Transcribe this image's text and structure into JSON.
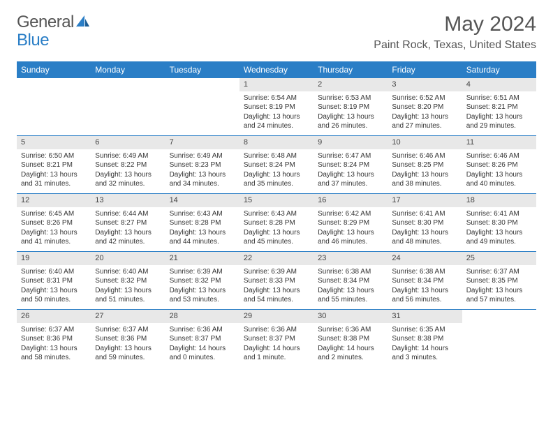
{
  "logo": {
    "text_a": "General",
    "text_b": "Blue"
  },
  "title": "May 2024",
  "location": "Paint Rock, Texas, United States",
  "colors": {
    "header_bg": "#2a7ec6",
    "header_text": "#ffffff",
    "daynum_bg": "#e8e8e8",
    "border": "#2a7ec6",
    "body_text": "#333333"
  },
  "weekdays": [
    "Sunday",
    "Monday",
    "Tuesday",
    "Wednesday",
    "Thursday",
    "Friday",
    "Saturday"
  ],
  "weeks": [
    [
      null,
      null,
      null,
      {
        "n": "1",
        "sr": "6:54 AM",
        "ss": "8:19 PM",
        "dl": "13 hours and 24 minutes."
      },
      {
        "n": "2",
        "sr": "6:53 AM",
        "ss": "8:19 PM",
        "dl": "13 hours and 26 minutes."
      },
      {
        "n": "3",
        "sr": "6:52 AM",
        "ss": "8:20 PM",
        "dl": "13 hours and 27 minutes."
      },
      {
        "n": "4",
        "sr": "6:51 AM",
        "ss": "8:21 PM",
        "dl": "13 hours and 29 minutes."
      }
    ],
    [
      {
        "n": "5",
        "sr": "6:50 AM",
        "ss": "8:21 PM",
        "dl": "13 hours and 31 minutes."
      },
      {
        "n": "6",
        "sr": "6:49 AM",
        "ss": "8:22 PM",
        "dl": "13 hours and 32 minutes."
      },
      {
        "n": "7",
        "sr": "6:49 AM",
        "ss": "8:23 PM",
        "dl": "13 hours and 34 minutes."
      },
      {
        "n": "8",
        "sr": "6:48 AM",
        "ss": "8:24 PM",
        "dl": "13 hours and 35 minutes."
      },
      {
        "n": "9",
        "sr": "6:47 AM",
        "ss": "8:24 PM",
        "dl": "13 hours and 37 minutes."
      },
      {
        "n": "10",
        "sr": "6:46 AM",
        "ss": "8:25 PM",
        "dl": "13 hours and 38 minutes."
      },
      {
        "n": "11",
        "sr": "6:46 AM",
        "ss": "8:26 PM",
        "dl": "13 hours and 40 minutes."
      }
    ],
    [
      {
        "n": "12",
        "sr": "6:45 AM",
        "ss": "8:26 PM",
        "dl": "13 hours and 41 minutes."
      },
      {
        "n": "13",
        "sr": "6:44 AM",
        "ss": "8:27 PM",
        "dl": "13 hours and 42 minutes."
      },
      {
        "n": "14",
        "sr": "6:43 AM",
        "ss": "8:28 PM",
        "dl": "13 hours and 44 minutes."
      },
      {
        "n": "15",
        "sr": "6:43 AM",
        "ss": "8:28 PM",
        "dl": "13 hours and 45 minutes."
      },
      {
        "n": "16",
        "sr": "6:42 AM",
        "ss": "8:29 PM",
        "dl": "13 hours and 46 minutes."
      },
      {
        "n": "17",
        "sr": "6:41 AM",
        "ss": "8:30 PM",
        "dl": "13 hours and 48 minutes."
      },
      {
        "n": "18",
        "sr": "6:41 AM",
        "ss": "8:30 PM",
        "dl": "13 hours and 49 minutes."
      }
    ],
    [
      {
        "n": "19",
        "sr": "6:40 AM",
        "ss": "8:31 PM",
        "dl": "13 hours and 50 minutes."
      },
      {
        "n": "20",
        "sr": "6:40 AM",
        "ss": "8:32 PM",
        "dl": "13 hours and 51 minutes."
      },
      {
        "n": "21",
        "sr": "6:39 AM",
        "ss": "8:32 PM",
        "dl": "13 hours and 53 minutes."
      },
      {
        "n": "22",
        "sr": "6:39 AM",
        "ss": "8:33 PM",
        "dl": "13 hours and 54 minutes."
      },
      {
        "n": "23",
        "sr": "6:38 AM",
        "ss": "8:34 PM",
        "dl": "13 hours and 55 minutes."
      },
      {
        "n": "24",
        "sr": "6:38 AM",
        "ss": "8:34 PM",
        "dl": "13 hours and 56 minutes."
      },
      {
        "n": "25",
        "sr": "6:37 AM",
        "ss": "8:35 PM",
        "dl": "13 hours and 57 minutes."
      }
    ],
    [
      {
        "n": "26",
        "sr": "6:37 AM",
        "ss": "8:36 PM",
        "dl": "13 hours and 58 minutes."
      },
      {
        "n": "27",
        "sr": "6:37 AM",
        "ss": "8:36 PM",
        "dl": "13 hours and 59 minutes."
      },
      {
        "n": "28",
        "sr": "6:36 AM",
        "ss": "8:37 PM",
        "dl": "14 hours and 0 minutes."
      },
      {
        "n": "29",
        "sr": "6:36 AM",
        "ss": "8:37 PM",
        "dl": "14 hours and 1 minute."
      },
      {
        "n": "30",
        "sr": "6:36 AM",
        "ss": "8:38 PM",
        "dl": "14 hours and 2 minutes."
      },
      {
        "n": "31",
        "sr": "6:35 AM",
        "ss": "8:38 PM",
        "dl": "14 hours and 3 minutes."
      },
      null
    ]
  ],
  "labels": {
    "sunrise": "Sunrise:",
    "sunset": "Sunset:",
    "daylight": "Daylight:"
  }
}
